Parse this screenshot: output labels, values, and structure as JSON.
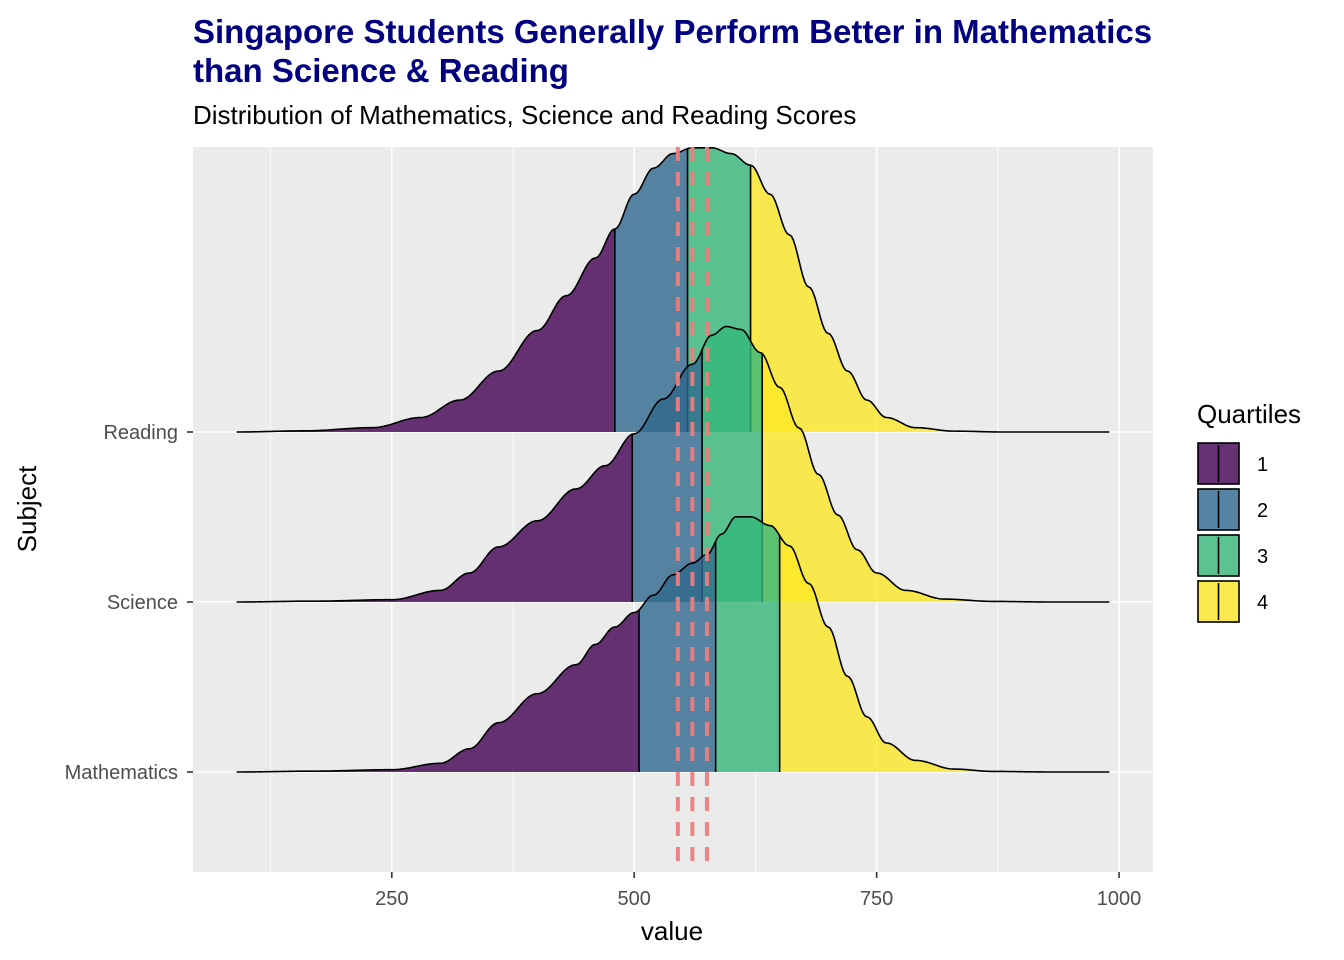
{
  "title": "Singapore Students Generally Perform Better in Mathematics than Science & Reading",
  "subtitle": "Distribution of Mathematics, Science and Reading Scores",
  "chart_data": {
    "type": "ridgeline",
    "xlabel": "value",
    "ylabel": "Subject",
    "xlim": [
      45,
      1035
    ],
    "x_ticks": [
      250,
      500,
      750,
      1000
    ],
    "x_tick_labels": [
      "250",
      "500",
      "750",
      "1000"
    ],
    "categories": [
      "Reading",
      "Science",
      "Mathematics"
    ],
    "grid": true,
    "legend": {
      "title": "Quartiles",
      "placement": "right",
      "items": [
        {
          "label": "1",
          "color": "#440154"
        },
        {
          "label": "2",
          "color": "#31688e"
        },
        {
          "label": "3",
          "color": "#35b779"
        },
        {
          "label": "4",
          "color": "#fde725"
        }
      ]
    },
    "reference_lines": [
      545,
      560,
      575
    ],
    "reference_line_color": "#f07c7c",
    "series": [
      {
        "name": "Mathematics",
        "quartiles": [
          505,
          584,
          650
        ],
        "x_range": [
          90,
          990
        ],
        "density": [
          [
            90,
            0
          ],
          [
            170,
            0.003
          ],
          [
            250,
            0.008
          ],
          [
            300,
            0.03
          ],
          [
            330,
            0.08
          ],
          [
            360,
            0.17
          ],
          [
            400,
            0.27
          ],
          [
            440,
            0.37
          ],
          [
            460,
            0.44
          ],
          [
            480,
            0.5
          ],
          [
            500,
            0.55
          ],
          [
            520,
            0.61
          ],
          [
            540,
            0.68
          ],
          [
            560,
            0.72
          ],
          [
            575,
            0.75
          ],
          [
            590,
            0.82
          ],
          [
            605,
            0.88
          ],
          [
            620,
            0.88
          ],
          [
            640,
            0.85
          ],
          [
            660,
            0.78
          ],
          [
            680,
            0.65
          ],
          [
            700,
            0.5
          ],
          [
            720,
            0.33
          ],
          [
            740,
            0.19
          ],
          [
            760,
            0.1
          ],
          [
            790,
            0.04
          ],
          [
            830,
            0.01
          ],
          [
            870,
            0.002
          ],
          [
            930,
            0
          ],
          [
            990,
            0
          ]
        ]
      },
      {
        "name": "Science",
        "quartiles": [
          498,
          570,
          632
        ],
        "x_range": [
          90,
          990
        ],
        "density": [
          [
            90,
            0
          ],
          [
            170,
            0.003
          ],
          [
            250,
            0.008
          ],
          [
            300,
            0.04
          ],
          [
            330,
            0.1
          ],
          [
            360,
            0.19
          ],
          [
            400,
            0.28
          ],
          [
            440,
            0.39
          ],
          [
            470,
            0.47
          ],
          [
            500,
            0.58
          ],
          [
            530,
            0.7
          ],
          [
            560,
            0.82
          ],
          [
            580,
            0.92
          ],
          [
            595,
            0.95
          ],
          [
            610,
            0.94
          ],
          [
            630,
            0.86
          ],
          [
            650,
            0.74
          ],
          [
            670,
            0.6
          ],
          [
            690,
            0.44
          ],
          [
            710,
            0.3
          ],
          [
            730,
            0.18
          ],
          [
            750,
            0.1
          ],
          [
            780,
            0.04
          ],
          [
            820,
            0.01
          ],
          [
            870,
            0.002
          ],
          [
            930,
            0
          ],
          [
            990,
            0
          ]
        ]
      },
      {
        "name": "Reading",
        "quartiles": [
          480,
          555,
          620
        ],
        "x_range": [
          90,
          990
        ],
        "density": [
          [
            90,
            0
          ],
          [
            160,
            0.004
          ],
          [
            230,
            0.015
          ],
          [
            280,
            0.05
          ],
          [
            320,
            0.11
          ],
          [
            360,
            0.21
          ],
          [
            400,
            0.35
          ],
          [
            430,
            0.47
          ],
          [
            460,
            0.6
          ],
          [
            480,
            0.7
          ],
          [
            500,
            0.82
          ],
          [
            520,
            0.91
          ],
          [
            540,
            0.96
          ],
          [
            560,
            0.98
          ],
          [
            580,
            0.98
          ],
          [
            600,
            0.96
          ],
          [
            620,
            0.92
          ],
          [
            640,
            0.82
          ],
          [
            660,
            0.68
          ],
          [
            680,
            0.5
          ],
          [
            700,
            0.34
          ],
          [
            720,
            0.21
          ],
          [
            740,
            0.11
          ],
          [
            760,
            0.05
          ],
          [
            790,
            0.015
          ],
          [
            830,
            0.003
          ],
          [
            880,
            0
          ],
          [
            990,
            0
          ]
        ]
      }
    ]
  }
}
